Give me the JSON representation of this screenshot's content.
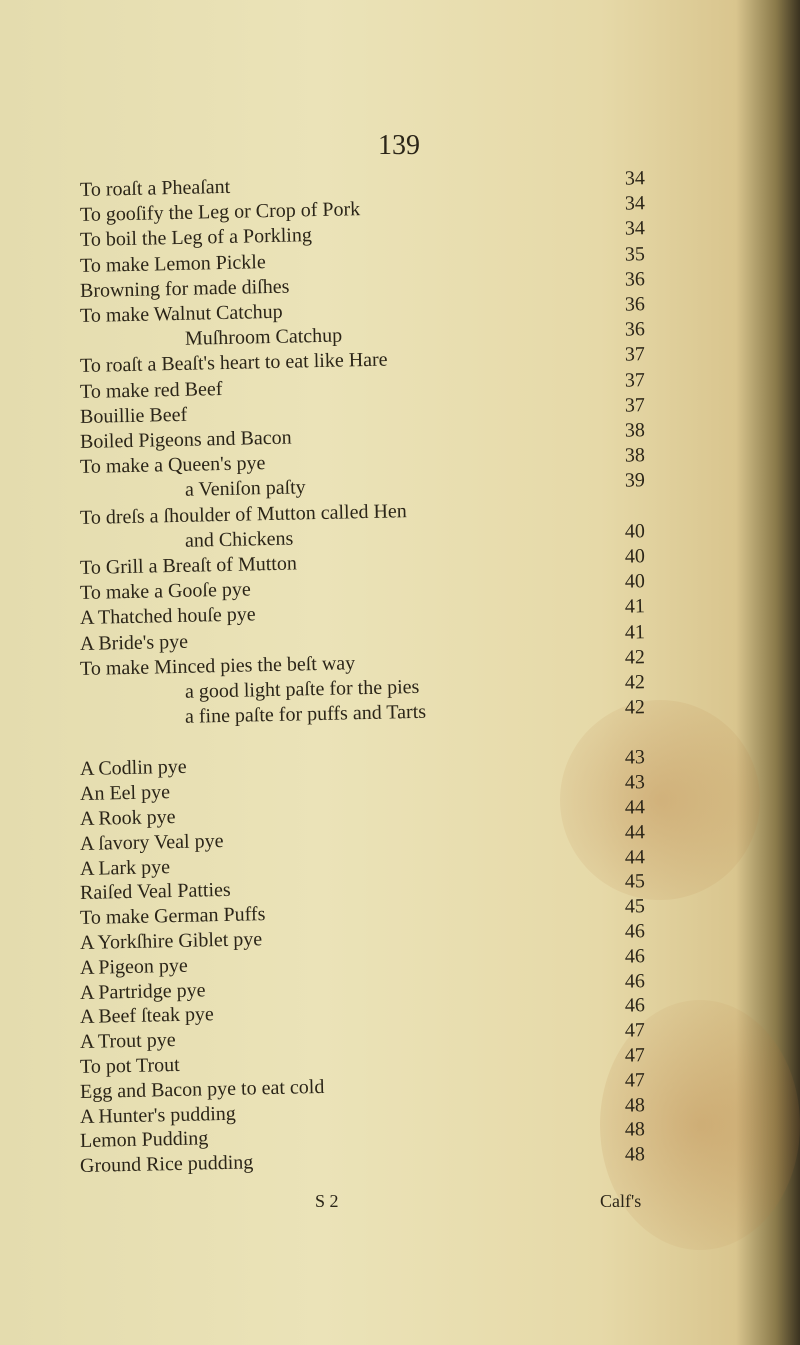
{
  "page_number": "139",
  "entries": [
    {
      "text": "To roaſt a Pheaſant",
      "page": "34"
    },
    {
      "text": "To gooſify the Leg or Crop of Pork",
      "page": "34"
    },
    {
      "text": "To boil the Leg of a Porkling",
      "page": "34"
    },
    {
      "text": "To make Lemon Pickle",
      "page": "35"
    },
    {
      "text": "Browning for made diſhes",
      "page": "36"
    },
    {
      "text": "To make Walnut Catchup",
      "page": "36"
    },
    {
      "text": "Muſhroom Catchup",
      "page": "36",
      "indent": true
    },
    {
      "text": "To roaſt a Beaſt's heart to eat like Hare",
      "page": "37"
    },
    {
      "text": "To make red Beef",
      "page": "37"
    },
    {
      "text": "Bouillie Beef",
      "page": "37"
    },
    {
      "text": "Boiled Pigeons and Bacon",
      "page": "38"
    },
    {
      "text": "To make a Queen's pye",
      "page": "38"
    },
    {
      "text": "a Veniſon paſty",
      "page": "39",
      "indent": true
    },
    {
      "text": "To dreſs a ſhoulder of Mutton called Hen",
      "page": ""
    },
    {
      "text": "and Chickens",
      "page": "40",
      "indent": true
    },
    {
      "text": "To Grill a Breaſt of Mutton",
      "page": "40"
    },
    {
      "text": "To make a Gooſe pye",
      "page": "40"
    },
    {
      "text": "A Thatched houſe pye",
      "page": "41"
    },
    {
      "text": "A Bride's pye",
      "page": "41"
    },
    {
      "text": "To make Minced pies the beſt way",
      "page": "42"
    },
    {
      "text": "a good light paſte for the pies",
      "page": "42",
      "indent": true
    },
    {
      "text": "a fine paſte for puffs and Tarts",
      "page": "42",
      "indent": true
    },
    {
      "text": "A Codlin pye",
      "page": "43"
    },
    {
      "text": "An Eel pye",
      "page": "43"
    },
    {
      "text": "A Rook pye",
      "page": "44"
    },
    {
      "text": "A ſavory Veal pye",
      "page": "44"
    },
    {
      "text": "A Lark pye",
      "page": "44"
    },
    {
      "text": "Raiſed Veal Patties",
      "page": "45"
    },
    {
      "text": "To make German Puffs",
      "page": "45"
    },
    {
      "text": "A Yorkſhire Giblet pye",
      "page": "46"
    },
    {
      "text": "A Pigeon pye",
      "page": "46"
    },
    {
      "text": "A Partridge pye",
      "page": "46"
    },
    {
      "text": "A Beef ſteak pye",
      "page": "46"
    },
    {
      "text": "A Trout pye",
      "page": "47"
    },
    {
      "text": "To pot Trout",
      "page": "47"
    },
    {
      "text": "Egg and Bacon pye to eat cold",
      "page": "47"
    },
    {
      "text": "A Hunter's pudding",
      "page": "48"
    },
    {
      "text": "Lemon Pudding",
      "page": "48"
    },
    {
      "text": "Ground Rice pudding",
      "page": "48"
    }
  ],
  "signature": "S 2",
  "catchword": "Calf's"
}
